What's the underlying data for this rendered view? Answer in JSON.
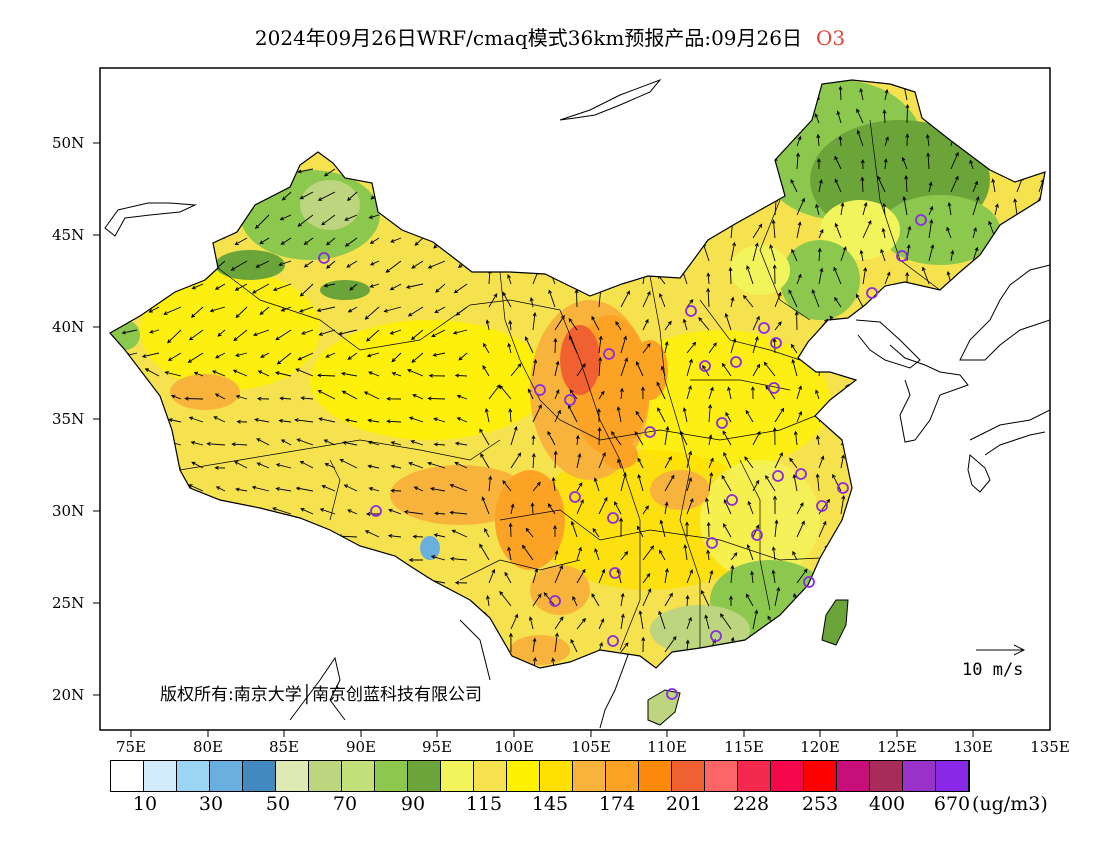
{
  "title": {
    "text": "2024年09月26日WRF/cmaq模式36km预报产品:09月26日",
    "pollutant": "O3"
  },
  "axes": {
    "lat_labels": [
      "50N",
      "45N",
      "40N",
      "35N",
      "30N",
      "25N",
      "20N"
    ],
    "lon_labels": [
      "75E",
      "80E",
      "85E",
      "90E",
      "95E",
      "100E",
      "105E",
      "110E",
      "115E",
      "120E",
      "125E",
      "130E",
      "135E"
    ]
  },
  "legend": {
    "labels": [
      "10",
      "30",
      "50",
      "70",
      "90",
      "115",
      "145",
      "174",
      "201",
      "228",
      "253",
      "400",
      "670"
    ],
    "unit": "(ug/m3)",
    "colors": [
      "#ffffff",
      "#d2ecfb",
      "#9ad5f3",
      "#6aafdd",
      "#4289c0",
      "#dfe9b4",
      "#bcd57e",
      "#c2e07a",
      "#8bc84d",
      "#6ba53a",
      "#f2f45c",
      "#f5e24e",
      "#fff200",
      "#ffe000",
      "#f8b33d",
      "#fca325",
      "#fe8a0c",
      "#f06030",
      "#fd6566",
      "#f2284e",
      "#f6064a",
      "#fd0000",
      "#c60f78",
      "#a72c5a",
      "#9932c9",
      "#8828e6"
    ]
  },
  "wind_reference": "10 m/s",
  "copyright": "版权所有:南京大学│南京创蓝科技有限公司"
}
